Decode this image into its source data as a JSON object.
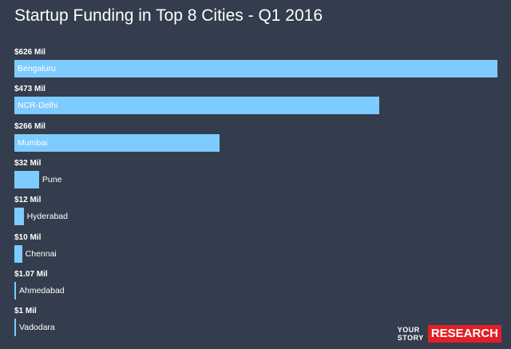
{
  "chart_data": {
    "type": "bar",
    "orientation": "horizontal",
    "title": "Startup Funding in Top 8 Cities - Q1 2016",
    "categories": [
      "Bengaluru",
      "NCR-Delhi",
      "Mumbai",
      "Pune",
      "Hyderabad",
      "Chennai",
      "Ahmedabad",
      "Vadodara"
    ],
    "values": [
      626,
      473,
      266,
      32,
      12,
      10,
      1.07,
      1
    ],
    "value_labels": [
      "$626 Mil",
      "$473 Mil",
      "$266 Mil",
      "$32 Mil",
      "$12 Mil",
      "$10 Mil",
      "$1.07 Mil",
      "$1 Mil"
    ],
    "bar_color": "#7ecbff",
    "background_color": "#333d4d",
    "grid": false,
    "legend": "none"
  },
  "branding": {
    "logo_top": "YOUR",
    "logo_bottom": "STORY",
    "logo_badge": "RESEARCH",
    "badge_color": "#e21f26"
  }
}
